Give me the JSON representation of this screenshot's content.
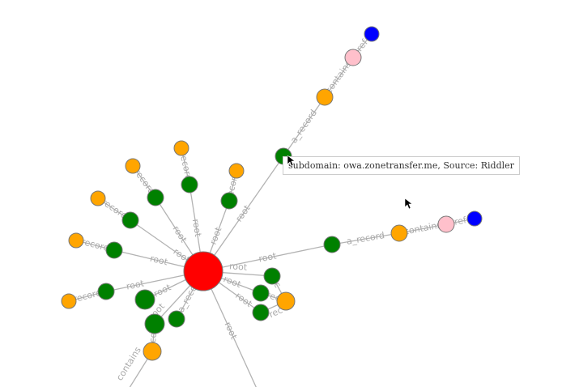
{
  "graph": {
    "colors": {
      "root": "#ff0000",
      "subdomain": "#008000",
      "ip": "#ffa500",
      "netblock": "#ffc0cb",
      "asn": "#0000ff"
    },
    "nodes": [
      {
        "id": "C",
        "type": "root"
      },
      {
        "id": "g1",
        "type": "subdomain"
      },
      {
        "id": "o1",
        "type": "ip"
      },
      {
        "id": "p1",
        "type": "netblock"
      },
      {
        "id": "b1",
        "type": "asn"
      },
      {
        "id": "g2",
        "type": "subdomain"
      },
      {
        "id": "o2",
        "type": "ip"
      },
      {
        "id": "p2",
        "type": "netblock"
      },
      {
        "id": "b2",
        "type": "asn"
      },
      {
        "id": "g3",
        "type": "subdomain"
      },
      {
        "id": "o3",
        "type": "ip"
      },
      {
        "id": "g4",
        "type": "subdomain"
      },
      {
        "id": "o4",
        "type": "ip"
      },
      {
        "id": "g5",
        "type": "subdomain"
      },
      {
        "id": "o5",
        "type": "ip"
      },
      {
        "id": "g6",
        "type": "subdomain"
      },
      {
        "id": "o6",
        "type": "ip"
      },
      {
        "id": "g7",
        "type": "subdomain"
      },
      {
        "id": "o7",
        "type": "ip"
      },
      {
        "id": "g8",
        "type": "subdomain"
      },
      {
        "id": "o8",
        "type": "ip"
      },
      {
        "id": "g9",
        "type": "subdomain"
      },
      {
        "id": "g10",
        "type": "subdomain"
      },
      {
        "id": "o9",
        "type": "ip"
      },
      {
        "id": "g11",
        "type": "subdomain"
      },
      {
        "id": "g12",
        "type": "subdomain"
      },
      {
        "id": "g13",
        "type": "subdomain"
      },
      {
        "id": "g14",
        "type": "subdomain"
      },
      {
        "id": "o10",
        "type": "ip"
      }
    ],
    "edges": [
      {
        "s": "C",
        "t": "g1",
        "label": "root"
      },
      {
        "s": "g1",
        "t": "o1",
        "label": "a_record"
      },
      {
        "s": "o1",
        "t": "p1",
        "label": "contains"
      },
      {
        "s": "p1",
        "t": "b1",
        "label": "ref"
      },
      {
        "s": "C",
        "t": "g2",
        "label": "root"
      },
      {
        "s": "g2",
        "t": "o2",
        "label": "a_record"
      },
      {
        "s": "o2",
        "t": "p2",
        "label": "contains"
      },
      {
        "s": "p2",
        "t": "b2",
        "label": "ref"
      },
      {
        "s": "C",
        "t": "g3",
        "label": "root"
      },
      {
        "s": "g3",
        "t": "o3",
        "label": "record"
      },
      {
        "s": "C",
        "t": "g4",
        "label": "root"
      },
      {
        "s": "g4",
        "t": "o4",
        "label": "record"
      },
      {
        "s": "C",
        "t": "g5",
        "label": "root"
      },
      {
        "s": "g5",
        "t": "o5",
        "label": "record"
      },
      {
        "s": "C",
        "t": "g6",
        "label": "root"
      },
      {
        "s": "g6",
        "t": "o6",
        "label": "record"
      },
      {
        "s": "C",
        "t": "g7",
        "label": "root"
      },
      {
        "s": "g7",
        "t": "o7",
        "label": "record"
      },
      {
        "s": "C",
        "t": "g8",
        "label": "root"
      },
      {
        "s": "g8",
        "t": "o8",
        "label": "record"
      },
      {
        "s": "C",
        "t": "g9",
        "label": "root"
      },
      {
        "s": "C",
        "t": "g10",
        "label": "root"
      },
      {
        "s": "g10",
        "t": "o9",
        "label": "record"
      },
      {
        "s": "C",
        "t": "g11",
        "label": "a_record"
      },
      {
        "s": "C",
        "t": "g12",
        "label": "root"
      },
      {
        "s": "C",
        "t": "g13",
        "label": "root"
      },
      {
        "s": "C",
        "t": "g14",
        "label": "root"
      },
      {
        "s": "g12",
        "t": "o10",
        "label": "rec"
      },
      {
        "s": "g13",
        "t": "o10",
        "label": "rec"
      },
      {
        "s": "g14",
        "t": "o10",
        "label": "rec"
      },
      {
        "s": "C",
        "t": "x1",
        "label": "root"
      },
      {
        "s": "o9",
        "t": "x2",
        "label": "contains"
      }
    ]
  },
  "tooltip": {
    "text": "subdomain: owa.zonetransfer.me, Source: Riddler"
  }
}
